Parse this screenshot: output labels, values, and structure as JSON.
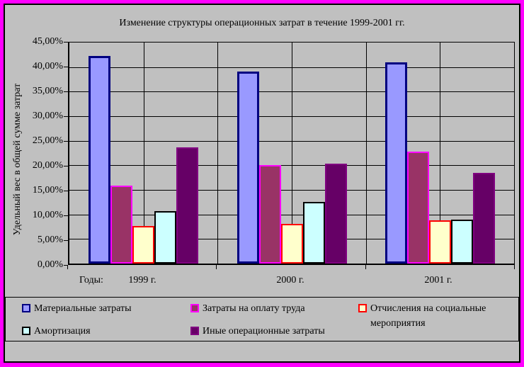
{
  "window": {
    "frame_color": "#FF00FF",
    "background_color": "#C0C0C0"
  },
  "chart_data": {
    "type": "bar",
    "title": "Изменение структуры операционных затрат в течение 1999-2001 гг.",
    "xlabel": "Годы:",
    "ylabel": "Удельный вес в общей сумме затрат",
    "categories": [
      "1999 г.",
      "2000 г.",
      "2001 г."
    ],
    "series": [
      {
        "name": "Материальные затраты",
        "fill": "#9999FF",
        "border": "#000080",
        "values": [
          42.2,
          39.1,
          40.9
        ]
      },
      {
        "name": "Затраты на оплату труда",
        "fill": "#993366",
        "border": "#FF00FF",
        "values": [
          15.8,
          20.0,
          22.8
        ]
      },
      {
        "name": "Отчисления на социальные мероприятия",
        "fill": "#FFFFCC",
        "border": "#FF0000",
        "values": [
          7.7,
          8.1,
          8.8
        ]
      },
      {
        "name": "Амортизация",
        "fill": "#CCFFFF",
        "border": "#000000",
        "values": [
          10.7,
          12.5,
          9.0
        ]
      },
      {
        "name": "Иные операционные затраты",
        "fill": "#660066",
        "border": "#800080",
        "values": [
          23.6,
          20.3,
          18.5
        ]
      }
    ],
    "ylim": [
      0,
      45
    ],
    "ytick_step": 5,
    "ytick_labels": [
      "45,00%",
      "40,00%",
      "35,00%",
      "30,00%",
      "25,00%",
      "20,00%",
      "15,00%",
      "10,00%",
      "5,00%",
      "0,00%"
    ],
    "grid": true,
    "legend_position": "bottom"
  }
}
